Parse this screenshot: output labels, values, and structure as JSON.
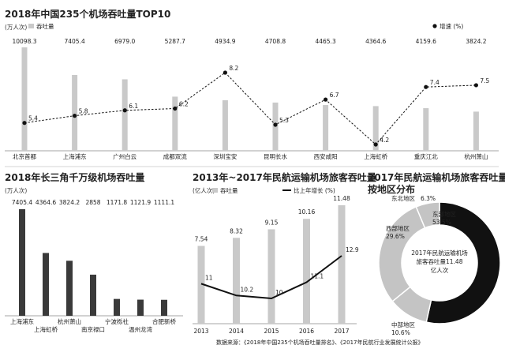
{
  "source": "数据来源：《2018年中国235个机场吞吐量排名》、《2017年民航行业发展统计公报》",
  "colors": {
    "bar": "#c9c9c9",
    "bar_dark": "#3a3a3a",
    "line": "#111111",
    "donut_dark": "#111111",
    "donut_light": "#c4c4c4"
  },
  "chart_data": [
    {
      "type": "bar",
      "title": "2018年中国235个机场吞吐量TOP10",
      "unit": "(万人次)",
      "categories": [
        "北京首都",
        "上海浦东",
        "广州白云",
        "成都双流",
        "深圳宝安",
        "昆明长水",
        "西安咸阳",
        "上海虹桥",
        "重庆江北",
        "杭州萧山"
      ],
      "value_labels": [
        "10098.3",
        "7405.4",
        "6979.0",
        "5287.7",
        "4934.9",
        "4708.8",
        "4465.3",
        "4364.6",
        "4159.6",
        "3824.2"
      ],
      "series": [
        {
          "name": "吞吐量",
          "type": "bar",
          "values": [
            10098.3,
            7405.4,
            6979.0,
            5287.7,
            4934.9,
            4708.8,
            4465.3,
            4364.6,
            4159.6,
            3824.2
          ]
        },
        {
          "name": "增速 (%)",
          "type": "line",
          "values": [
            5.4,
            5.8,
            6.1,
            6.2,
            8.2,
            5.3,
            6.7,
            4.2,
            7.4,
            7.5
          ],
          "labels": [
            "5.4",
            "5.8",
            "6.1",
            "6.2",
            "8.2",
            "5.3",
            "6.7",
            "4.2",
            "7.4",
            "7.5"
          ]
        }
      ],
      "ylim": [
        0,
        10098.3
      ],
      "y2lim": [
        4.2,
        8.2
      ]
    },
    {
      "type": "bar",
      "title": "2018年长三角千万级机场吞吐量",
      "unit": "(万人次)",
      "categories": [
        "上海浦东",
        "上海虹桥",
        "杭州萧山",
        "南京禄口",
        "宁波栎社",
        "温州龙湾",
        "合肥新桥"
      ],
      "value_labels": [
        "7405.4",
        "4364.6",
        "3824.2",
        "2858",
        "1171.8",
        "1121.9",
        "1111.1"
      ],
      "series": [
        {
          "name": "吞吐量",
          "values": [
            7405.4,
            4364.6,
            3824.2,
            2858,
            1171.8,
            1121.9,
            1111.1
          ]
        }
      ],
      "ylim": [
        0,
        7405.4
      ]
    },
    {
      "type": "bar",
      "title": "2013年~2017年民航运输机场旅客吞吐量",
      "unit": "(亿人次)",
      "categories": [
        "2013",
        "2014",
        "2015",
        "2016",
        "2017"
      ],
      "value_labels": [
        "7.54",
        "8.32",
        "9.15",
        "10.16",
        "11.48"
      ],
      "series": [
        {
          "name": "吞吐量",
          "type": "bar",
          "values": [
            7.54,
            8.32,
            9.15,
            10.16,
            11.48
          ]
        },
        {
          "name": "比上年增长 (%)",
          "type": "line",
          "values": [
            11,
            10.2,
            10,
            11.1,
            12.9
          ],
          "labels": [
            "11",
            "10.2",
            "10",
            "11.1",
            "12.9"
          ]
        }
      ],
      "ylim": [
        0,
        11.48
      ]
    },
    {
      "type": "pie",
      "title_lines": [
        "2017年民航运输机场旅客吞吐量",
        "按地区分布"
      ],
      "center_lines": [
        "2017年民航运输机场",
        "旅客吞吐量11.48",
        "亿人次"
      ],
      "slices": [
        {
          "name": "东部地区",
          "value": 53.5,
          "label": "53.5%"
        },
        {
          "name": "中部地区",
          "value": 10.6,
          "label": "10.6%"
        },
        {
          "name": "西部地区",
          "value": 29.6,
          "label": "29.6%"
        },
        {
          "name": "东北地区",
          "value": 6.3,
          "label": "6.3%"
        }
      ]
    }
  ]
}
